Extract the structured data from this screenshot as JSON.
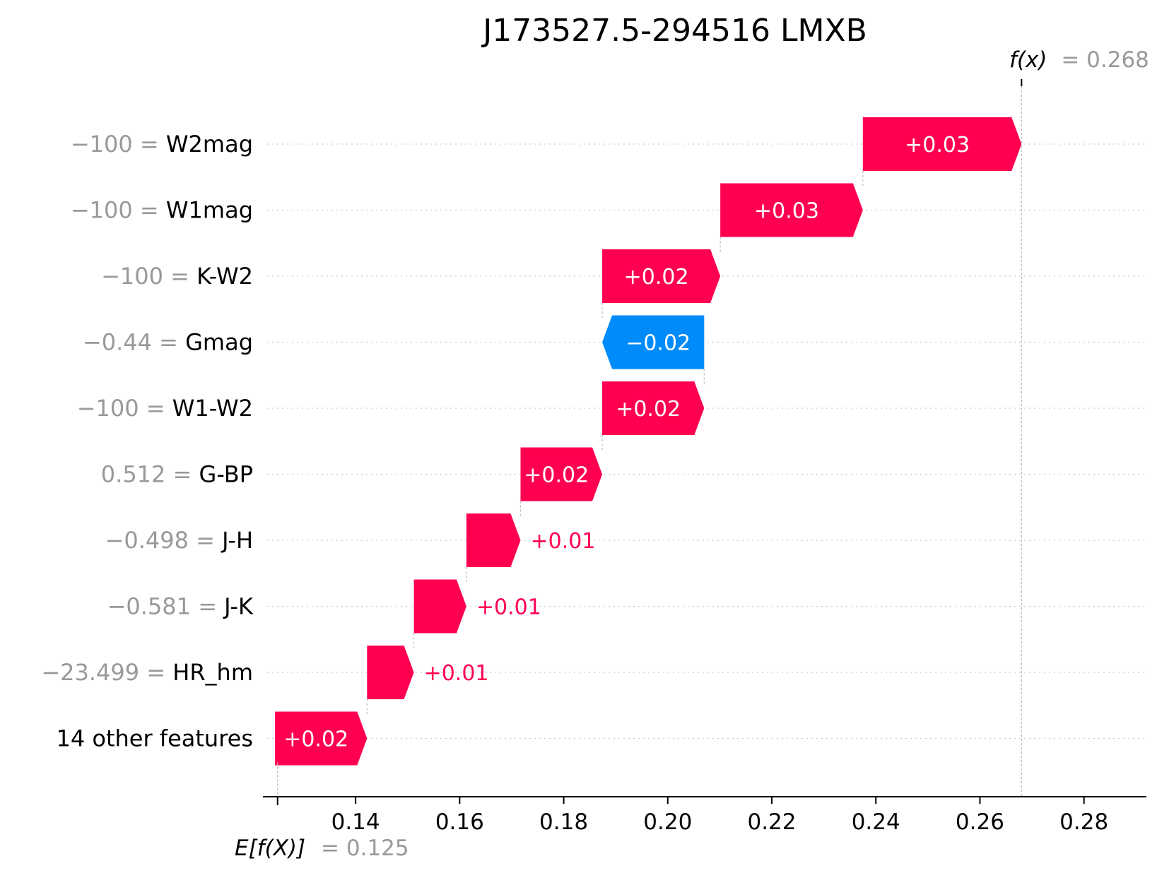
{
  "chart_data": {
    "type": "waterfall",
    "title": "J173527.5-294516 LMXB",
    "base_value": 0.125,
    "base_label": "E[f(X)]",
    "base_value_text": "= 0.125",
    "output_value": 0.268,
    "output_label": "f(x)",
    "output_value_text": "= 0.268",
    "xlim": [
      0.123,
      0.292
    ],
    "xticks": [
      0.14,
      0.16,
      0.18,
      0.2,
      0.22,
      0.24,
      0.26,
      0.28
    ],
    "xtick_labels": [
      "0.14",
      "0.16",
      "0.18",
      "0.20",
      "0.22",
      "0.24",
      "0.26",
      "0.28"
    ],
    "features": [
      {
        "feature_value": "−100",
        "feature": "W2mag",
        "start": 0.2375,
        "end": 0.268,
        "label": "+0.03"
      },
      {
        "feature_value": "−100",
        "feature": "W1mag",
        "start": 0.2101,
        "end": 0.2375,
        "label": "+0.03"
      },
      {
        "feature_value": "−100",
        "feature": "K-W2",
        "start": 0.1874,
        "end": 0.2101,
        "label": "+0.02"
      },
      {
        "feature_value": "−0.44",
        "feature": "Gmag",
        "start": 0.207,
        "end": 0.1874,
        "label": "−0.02"
      },
      {
        "feature_value": "−100",
        "feature": "W1-W2",
        "start": 0.1874,
        "end": 0.207,
        "label": "+0.02"
      },
      {
        "feature_value": "0.512",
        "feature": "G-BP",
        "start": 0.1717,
        "end": 0.1874,
        "label": "+0.02"
      },
      {
        "feature_value": "−0.498",
        "feature": "J-H",
        "start": 0.1613,
        "end": 0.1717,
        "label": "+0.01"
      },
      {
        "feature_value": "−0.581",
        "feature": "J-K",
        "start": 0.1512,
        "end": 0.1613,
        "label": "+0.01"
      },
      {
        "feature_value": "−23.499",
        "feature": "HR_hm",
        "start": 0.1422,
        "end": 0.1512,
        "label": "+0.01"
      },
      {
        "feature_value": "",
        "feature": "14 other features",
        "start": 0.1245,
        "end": 0.1422,
        "label": "+0.02"
      }
    ],
    "colors": {
      "positive": "#ff0051",
      "negative": "#008bfb",
      "value_text": "#999999",
      "grid": "#cccccc"
    }
  }
}
